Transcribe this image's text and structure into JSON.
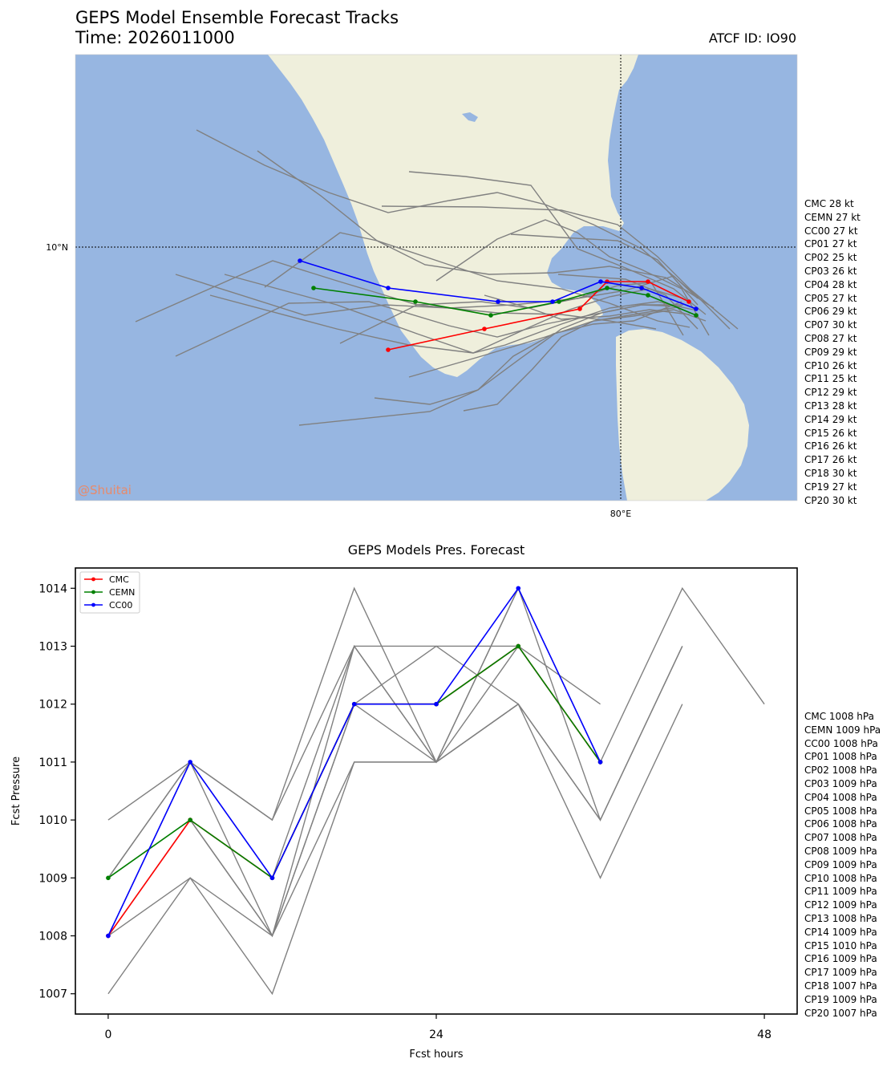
{
  "header": {
    "title_line1": "GEPS Model Ensemble Forecast Tracks",
    "title_line2": "Time: 2026011000",
    "atcf": "ATCF ID: IO90"
  },
  "map": {
    "lat_label": "10°N",
    "lon_label": "80°E",
    "watermark": "@Shuitai",
    "ocean_color": "#97b6e1",
    "land_color": "#efefdc",
    "track_list": [
      "CMC 28 kt",
      "CEMN 27 kt",
      "CC00 27 kt",
      "CP01 27 kt",
      "CP02 25 kt",
      "CP03 26 kt",
      "CP04 28 kt",
      "CP05 27 kt",
      "CP06 29 kt",
      "CP07 30 kt",
      "CP08 27 kt",
      "CP09 29 kt",
      "CP10 26 kt",
      "CP11 25 kt",
      "CP12 29 kt",
      "CP13 28 kt",
      "CP14 29 kt",
      "CP15 26 kt",
      "CP16 26 kt",
      "CP17 26 kt",
      "CP18 30 kt",
      "CP19 27 kt",
      "CP20 30 kt"
    ]
  },
  "pressure": {
    "title": "GEPS Models Pres. Forecast",
    "xlabel": "Fcst hours",
    "ylabel": "Fcst Pressure",
    "pres_list": [
      "CMC 1008 hPa",
      "CEMN 1009 hPa",
      "CC00 1008 hPa",
      "CP01 1008 hPa",
      "CP02 1008 hPa",
      "CP03 1009 hPa",
      "CP04 1008 hPa",
      "CP05 1008 hPa",
      "CP06 1008 hPa",
      "CP07 1008 hPa",
      "CP08 1009 hPa",
      "CP09 1009 hPa",
      "CP10 1008 hPa",
      "CP11 1009 hPa",
      "CP12 1009 hPa",
      "CP13 1008 hPa",
      "CP14 1009 hPa",
      "CP15 1010 hPa",
      "CP16 1009 hPa",
      "CP17 1009 hPa",
      "CP18 1007 hPa",
      "CP19 1009 hPa",
      "CP20 1007 hPa"
    ]
  },
  "chart_data": [
    {
      "type": "line",
      "title": "GEPS Models Pres. Forecast",
      "xlabel": "Fcst hours",
      "ylabel": "Fcst Pressure",
      "xlim": [
        -2.4,
        50.4
      ],
      "ylim": [
        1006.65,
        1014.35
      ],
      "xticks": [
        0,
        24,
        48
      ],
      "yticks": [
        1007,
        1008,
        1009,
        1010,
        1011,
        1012,
        1013,
        1014
      ],
      "legend": "top-left",
      "series": [
        {
          "name": "CMC",
          "color": "#ff0000",
          "x": [
            0,
            6,
            12,
            18,
            24,
            30,
            36
          ],
          "values": [
            1008,
            1010,
            1009,
            1012,
            1012,
            1013,
            1011
          ]
        },
        {
          "name": "CEMN",
          "color": "#008000",
          "x": [
            0,
            6,
            12,
            18,
            24,
            30,
            36
          ],
          "values": [
            1009,
            1010,
            1009,
            1012,
            1012,
            1013,
            1011
          ]
        },
        {
          "name": "CC00",
          "color": "#0000ff",
          "x": [
            0,
            6,
            12,
            18,
            24,
            30,
            36
          ],
          "values": [
            1008,
            1011,
            1009,
            1012,
            1012,
            1014,
            1011
          ]
        }
      ],
      "members": [
        {
          "x": [
            0,
            6,
            12,
            18,
            24,
            30,
            36,
            42,
            48
          ],
          "values": [
            1010,
            1011,
            1010,
            1014,
            1011,
            1014,
            1011,
            1014,
            1012
          ]
        },
        {
          "x": [
            0,
            6,
            12,
            18,
            24,
            30,
            36,
            42
          ],
          "values": [
            1009,
            1011,
            1010,
            1013,
            1011,
            1014,
            1010,
            1013
          ]
        },
        {
          "x": [
            0,
            6,
            12,
            18,
            24,
            30,
            36
          ],
          "values": [
            1009,
            1011,
            1009,
            1013,
            1013,
            1013,
            1012
          ]
        },
        {
          "x": [
            0,
            6,
            12,
            18,
            24,
            30,
            36,
            42
          ],
          "values": [
            1008,
            1010,
            1008,
            1013,
            1011,
            1012,
            1010,
            1013
          ]
        },
        {
          "x": [
            0,
            6,
            12,
            18,
            24,
            30,
            36,
            42
          ],
          "values": [
            1008,
            1009,
            1008,
            1011,
            1011,
            1012,
            1009,
            1012
          ]
        },
        {
          "x": [
            0,
            6,
            12,
            18,
            24,
            30
          ],
          "values": [
            1007,
            1009,
            1007,
            1011,
            1011,
            1012
          ]
        },
        {
          "x": [
            0,
            6,
            12,
            18,
            24,
            30,
            36
          ],
          "values": [
            1009,
            1010,
            1008,
            1012,
            1013,
            1012,
            1010
          ]
        },
        {
          "x": [
            0,
            6,
            12,
            18,
            24,
            30
          ],
          "values": [
            1008,
            1011,
            1008,
            1012,
            1011,
            1013
          ]
        }
      ]
    }
  ]
}
